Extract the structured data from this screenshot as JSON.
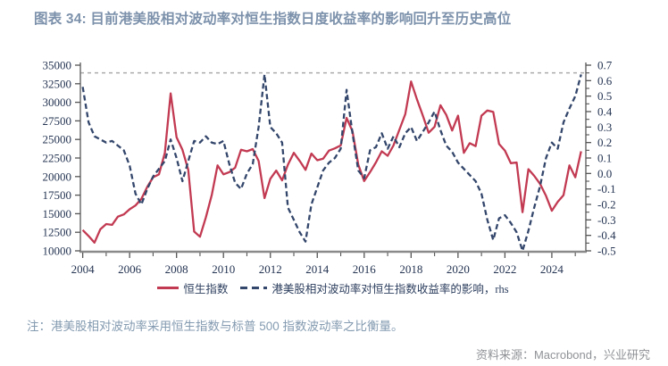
{
  "header": {
    "title": "图表 34: 目前港美股相对波动率对恒生指数日度收益率的影响回升至历史高位"
  },
  "legend": [
    {
      "label": "恒生指数",
      "color": "#c23a52",
      "style": "solid"
    },
    {
      "label": "港美股相对波动率对恒生指数收益率的影响，rhs",
      "color": "#33466b",
      "style": "dashed"
    }
  ],
  "footer": {
    "note": "注：港美股相对波动率采用恒生指数与标普 500 指数波动率之比衡量。",
    "source": "资料来源：Macrobond，兴业研究"
  },
  "colors": {
    "title": "#7c91ab",
    "hsi_line": "#c23a52",
    "impact_line": "#33466b",
    "axis_text": "#243452",
    "threshold": "#ababab"
  },
  "chart_data": {
    "type": "line",
    "title": "目前港美股相对波动率对恒生指数日度收益率的影响回升至历史高位",
    "grid": false,
    "legend_position": "bottom",
    "x": [
      2004,
      2004.25,
      2004.5,
      2004.75,
      2005,
      2005.25,
      2005.5,
      2005.75,
      2006,
      2006.25,
      2006.5,
      2006.75,
      2007,
      2007.25,
      2007.5,
      2007.75,
      2008,
      2008.25,
      2008.5,
      2008.75,
      2009,
      2009.25,
      2009.5,
      2009.75,
      2010,
      2010.25,
      2010.5,
      2010.75,
      2011,
      2011.25,
      2011.5,
      2011.75,
      2012,
      2012.25,
      2012.5,
      2012.75,
      2013,
      2013.25,
      2013.5,
      2013.75,
      2014,
      2014.25,
      2014.5,
      2014.75,
      2015,
      2015.25,
      2015.5,
      2015.75,
      2016,
      2016.25,
      2016.5,
      2016.75,
      2017,
      2017.25,
      2017.5,
      2017.75,
      2018,
      2018.25,
      2018.5,
      2018.75,
      2019,
      2019.25,
      2019.5,
      2019.75,
      2020,
      2020.25,
      2020.5,
      2020.75,
      2021,
      2021.25,
      2021.5,
      2021.75,
      2022,
      2022.25,
      2022.5,
      2022.75,
      2023,
      2023.25,
      2023.5,
      2023.75,
      2024,
      2024.25,
      2024.5,
      2024.75,
      2025,
      2025.25
    ],
    "series": [
      {
        "name": "恒生指数",
        "axis": "left",
        "color": "#c23a52",
        "style": "solid",
        "values": [
          12800,
          12000,
          11100,
          12900,
          13600,
          13500,
          14600,
          14900,
          15600,
          16100,
          17000,
          18600,
          19900,
          20300,
          23200,
          31200,
          25300,
          23600,
          20900,
          12600,
          11900,
          14500,
          17500,
          21500,
          20300,
          20600,
          21200,
          23600,
          23400,
          23700,
          22100,
          17100,
          19700,
          20800,
          19500,
          21600,
          23200,
          22100,
          20900,
          23100,
          22200,
          22400,
          23500,
          23800,
          24200,
          27900,
          26100,
          21600,
          19400,
          20600,
          21900,
          23400,
          22800,
          24200,
          26300,
          28400,
          32800,
          30400,
          28200,
          25900,
          26700,
          29600,
          28300,
          26200,
          28200,
          23200,
          24500,
          24100,
          28200,
          28900,
          28700,
          24400,
          23500,
          21800,
          21900,
          15200,
          21000,
          20100,
          19000,
          17400,
          15400,
          16600,
          17500,
          21500,
          19900,
          23400
        ]
      },
      {
        "name": "港美股相对波动率对恒生指数收益率的影响，rhs",
        "axis": "right",
        "color": "#33466b",
        "style": "dashed",
        "values": [
          0.56,
          0.33,
          0.24,
          0.22,
          0.2,
          0.21,
          0.18,
          0.15,
          0.05,
          -0.13,
          -0.2,
          -0.1,
          -0.02,
          0.03,
          0.08,
          0.22,
          0.1,
          -0.05,
          0.08,
          0.21,
          0.2,
          0.24,
          0.2,
          0.19,
          0.21,
          0.06,
          -0.06,
          -0.1,
          0.0,
          0.06,
          0.3,
          0.64,
          0.3,
          0.26,
          0.2,
          -0.22,
          -0.3,
          -0.38,
          -0.44,
          -0.2,
          -0.09,
          0.02,
          0.07,
          0.1,
          0.16,
          0.54,
          0.26,
          0.02,
          -0.03,
          0.15,
          0.17,
          0.26,
          0.16,
          0.24,
          0.17,
          0.26,
          0.3,
          0.21,
          0.27,
          0.33,
          0.4,
          0.28,
          0.18,
          0.14,
          0.07,
          0.03,
          -0.01,
          -0.05,
          -0.13,
          -0.3,
          -0.43,
          -0.29,
          -0.27,
          -0.32,
          -0.38,
          -0.5,
          -0.37,
          -0.22,
          -0.08,
          0.1,
          0.2,
          0.16,
          0.33,
          0.42,
          0.5,
          0.64
        ]
      }
    ],
    "left_axis": {
      "min": 10000,
      "max": 35000,
      "ticks": [
        "35000",
        "32500",
        "30000",
        "27500",
        "25000",
        "22500",
        "20000",
        "17500",
        "15000",
        "12500",
        "10000"
      ]
    },
    "right_axis": {
      "min": -0.5,
      "max": 0.7,
      "minor_step": 0.05,
      "ticks": [
        "0.7",
        "0.6",
        "0.5",
        "0.4",
        "0.3",
        "0.2",
        "0.1",
        "0.0",
        "-0.1",
        "-0.2",
        "-0.3",
        "-0.4",
        "-0.5"
      ]
    },
    "x_axis": {
      "min": 2003.9,
      "max": 2025.45,
      "ticks": [
        "2004",
        "2006",
        "2008",
        "2010",
        "2012",
        "2014",
        "2016",
        "2018",
        "2020",
        "2022",
        "2024"
      ],
      "minor_years": [
        2005,
        2007,
        2009,
        2011,
        2013,
        2015,
        2017,
        2019,
        2021,
        2023,
        2025
      ]
    },
    "threshold": {
      "value": 0.65,
      "axis": "right",
      "style": "dotted",
      "color": "#ababab"
    }
  }
}
